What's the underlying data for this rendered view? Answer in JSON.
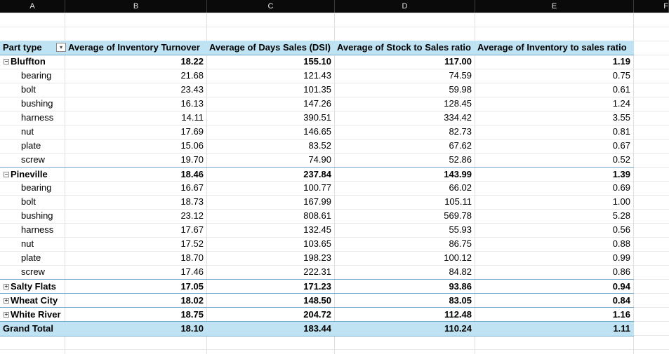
{
  "columns": [
    "A",
    "B",
    "C",
    "D",
    "E",
    "F"
  ],
  "pivot": {
    "headers": [
      "Part type",
      "Average of Inventory Turnover",
      "Average of Days Sales (DSI)",
      "Average of Stock to Sales ratio",
      "Average of Inventory to sales ratio"
    ],
    "groups": [
      {
        "name": "Bluffton",
        "values": [
          "18.22",
          "155.10",
          "117.00",
          "1.19"
        ],
        "expanded": true,
        "items": [
          {
            "name": "bearing",
            "values": [
              "21.68",
              "121.43",
              "74.59",
              "0.75"
            ]
          },
          {
            "name": "bolt",
            "values": [
              "23.43",
              "101.35",
              "59.98",
              "0.61"
            ]
          },
          {
            "name": "bushing",
            "values": [
              "16.13",
              "147.26",
              "128.45",
              "1.24"
            ]
          },
          {
            "name": "harness",
            "values": [
              "14.11",
              "390.51",
              "334.42",
              "3.55"
            ]
          },
          {
            "name": "nut",
            "values": [
              "17.69",
              "146.65",
              "82.73",
              "0.81"
            ]
          },
          {
            "name": "plate",
            "values": [
              "15.06",
              "83.52",
              "67.62",
              "0.67"
            ]
          },
          {
            "name": "screw",
            "values": [
              "19.70",
              "74.90",
              "52.86",
              "0.52"
            ]
          }
        ]
      },
      {
        "name": "Pineville",
        "values": [
          "18.46",
          "237.84",
          "143.99",
          "1.39"
        ],
        "expanded": true,
        "items": [
          {
            "name": "bearing",
            "values": [
              "16.67",
              "100.77",
              "66.02",
              "0.69"
            ]
          },
          {
            "name": "bolt",
            "values": [
              "18.73",
              "167.99",
              "105.11",
              "1.00"
            ]
          },
          {
            "name": "bushing",
            "values": [
              "23.12",
              "808.61",
              "569.78",
              "5.28"
            ]
          },
          {
            "name": "harness",
            "values": [
              "17.67",
              "132.45",
              "55.93",
              "0.56"
            ]
          },
          {
            "name": "nut",
            "values": [
              "17.52",
              "103.65",
              "86.75",
              "0.88"
            ]
          },
          {
            "name": "plate",
            "values": [
              "18.70",
              "198.23",
              "100.12",
              "0.99"
            ]
          },
          {
            "name": "screw",
            "values": [
              "17.46",
              "222.31",
              "84.82",
              "0.86"
            ]
          }
        ]
      },
      {
        "name": "Salty Flats",
        "values": [
          "17.05",
          "171.23",
          "93.86",
          "0.94"
        ],
        "expanded": false,
        "items": []
      },
      {
        "name": "Wheat City",
        "values": [
          "18.02",
          "148.50",
          "83.05",
          "0.84"
        ],
        "expanded": false,
        "items": []
      },
      {
        "name": "White River",
        "values": [
          "18.75",
          "204.72",
          "112.48",
          "1.16"
        ],
        "expanded": false,
        "items": []
      }
    ],
    "grand_total": {
      "label": "Grand Total",
      "values": [
        "18.10",
        "183.44",
        "110.24",
        "1.11"
      ]
    },
    "icons": {
      "collapse": "minus-box-icon",
      "expand": "plus-box-icon",
      "filter": "filter-dropdown-icon"
    }
  }
}
